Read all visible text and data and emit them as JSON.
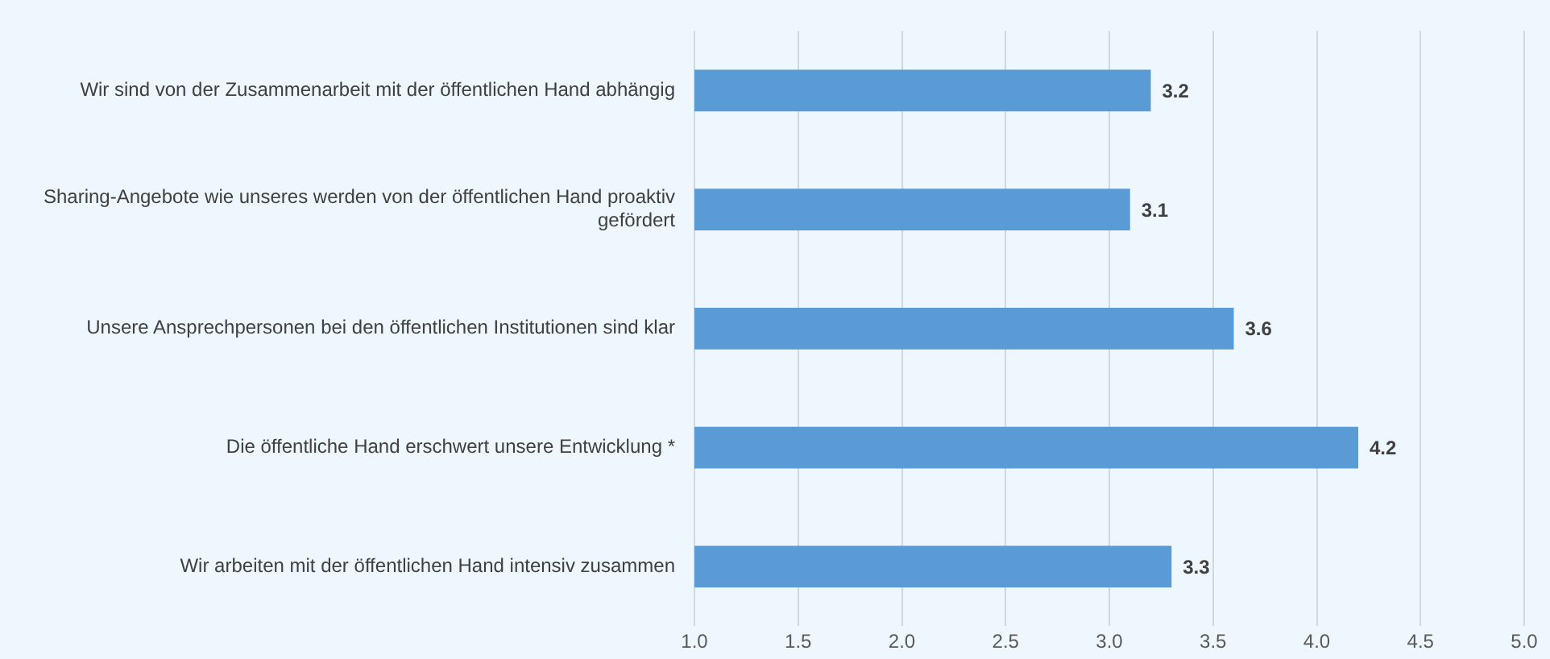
{
  "chart_data": {
    "type": "bar",
    "orientation": "horizontal",
    "categories": [
      "Wir sind von der Zusammenarbeit mit der öffentlichen Hand abhängig",
      "Sharing-Angebote wie unseres werden von der öffentlichen Hand proaktiv gefördert",
      "Unsere Ansprechpersonen bei den öffentlichen Institutionen sind klar",
      "Die öffentliche Hand erschwert unsere Entwicklung *",
      "Wir arbeiten mit der öffentlichen Hand intensiv zusammen"
    ],
    "values": [
      3.2,
      3.1,
      3.6,
      4.2,
      3.3
    ],
    "color": "#5b9bd5",
    "xlim": [
      1,
      5
    ],
    "xticks": [
      {
        "value": 1,
        "label": "1.0"
      },
      {
        "value": 1.5,
        "label": "1.5"
      },
      {
        "value": 2,
        "label": "2.0"
      },
      {
        "value": 2.5,
        "label": "2.5"
      },
      {
        "value": 3,
        "label": "3.0"
      },
      {
        "value": 3.5,
        "label": "3.5"
      },
      {
        "value": 4,
        "label": "4.0"
      },
      {
        "value": 4.5,
        "label": "4.5"
      },
      {
        "value": 5,
        "label": "5.0"
      }
    ],
    "grid": "x",
    "data_labels": true,
    "legend": false
  }
}
